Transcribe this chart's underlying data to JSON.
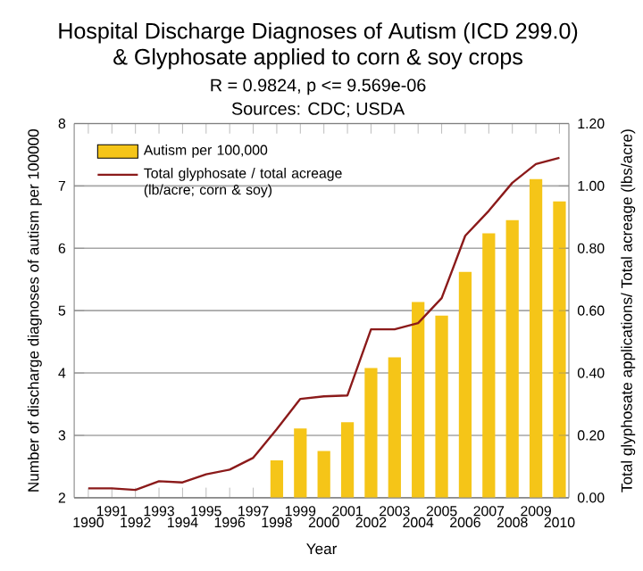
{
  "chart_data": {
    "type": "bar",
    "title": "Hospital Discharge Diagnoses of Autism (ICD 299.0)\n& Glyphosate applied to corn & soy crops",
    "subtitle": "R = 0.9824, p <= 9.569e-06",
    "annotations": [
      "Sources: CDC; USDA"
    ],
    "xlabel": "Year",
    "ylabel": "Number of discharge diagnoses of autism per 100000",
    "y2label": "Total glyphosate applications/ Total acreage (lbs/acre)",
    "categories": [
      "1990",
      "1991",
      "1992",
      "1993",
      "1994",
      "1995",
      "1996",
      "1997",
      "1998",
      "1999",
      "2000",
      "2001",
      "2002",
      "2003",
      "2004",
      "2005",
      "2006",
      "2007",
      "2008",
      "2009",
      "2010"
    ],
    "series": [
      {
        "name": "Autism  per 100,000",
        "color": "#f5c518",
        "values": [
          null,
          null,
          null,
          null,
          null,
          null,
          null,
          null,
          2.6,
          3.11,
          2.75,
          3.21,
          4.08,
          4.25,
          5.14,
          4.92,
          5.62,
          6.24,
          6.45,
          7.11,
          6.75
        ]
      },
      {
        "name": "Total glyphosate / total acreage (lb/acre; corn & soy)",
        "type": "line",
        "axis": "y2",
        "color": "#8b1a1a",
        "values": [
          0.03,
          0.03,
          0.025,
          0.053,
          0.049,
          0.075,
          0.09,
          0.128,
          0.22,
          0.317,
          0.325,
          0.328,
          0.54,
          0.54,
          0.56,
          0.64,
          0.84,
          0.92,
          1.01,
          1.07,
          1.09
        ]
      }
    ],
    "ylim": [
      2,
      8
    ],
    "yticks": [
      2,
      3,
      4,
      5,
      6,
      7,
      8
    ],
    "y2lim": [
      0,
      1.2
    ],
    "y2ticks": [
      {
        "value": 0,
        "label": "0.00"
      },
      {
        "value": 0.2,
        "label": "0.20"
      },
      {
        "value": 0.4,
        "label": "0.40"
      },
      {
        "value": 0.6,
        "label": "0.60"
      },
      {
        "value": 0.8,
        "label": "0.80"
      },
      {
        "value": 1.0,
        "label": "1.00"
      },
      {
        "value": 1.2,
        "label": "1.20"
      }
    ],
    "grid": "y",
    "legend": "top left",
    "marker": "none",
    "line_style": "solid"
  }
}
